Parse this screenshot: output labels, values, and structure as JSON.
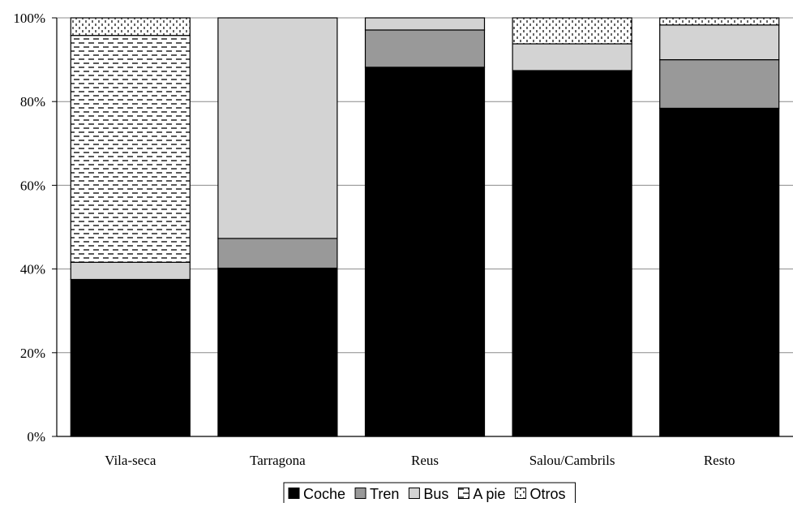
{
  "chart_data": {
    "type": "bar",
    "stacked": true,
    "percent": true,
    "categories": [
      "Vila-seca",
      "Tarragona",
      "Reus",
      "Salou/Cambrils",
      "Resto"
    ],
    "series": [
      {
        "name": "Coche",
        "values": [
          37.5,
          40.2,
          88.2,
          87.4,
          78.4
        ],
        "color": "#000000",
        "pattern": "solid"
      },
      {
        "name": "Tren",
        "values": [
          0.0,
          7.1,
          8.9,
          0.0,
          11.6
        ],
        "color": "#999999",
        "pattern": "solid"
      },
      {
        "name": "Bus",
        "values": [
          4.1,
          52.7,
          2.9,
          6.4,
          8.3
        ],
        "color": "#d3d3d3",
        "pattern": "solid"
      },
      {
        "name": "A pie",
        "values": [
          54.2,
          0.0,
          0.0,
          0.0,
          0.0
        ],
        "color": "#ffffff",
        "pattern": "dashes"
      },
      {
        "name": "Otros",
        "values": [
          4.2,
          0.0,
          0.0,
          6.2,
          1.7
        ],
        "color": "#ffffff",
        "pattern": "ticks"
      }
    ],
    "ylim": [
      0,
      100
    ],
    "yticks": [
      "0%",
      "20%",
      "40%",
      "60%",
      "80%",
      "100%"
    ],
    "grid": true,
    "legend_position": "bottom",
    "title": "",
    "xlabel": "",
    "ylabel": ""
  }
}
